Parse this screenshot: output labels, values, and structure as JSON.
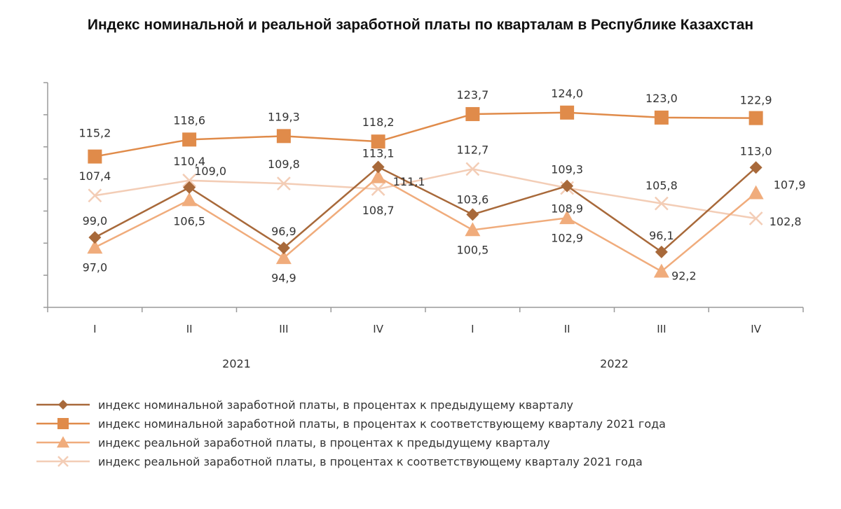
{
  "chart_data": {
    "type": "line",
    "title": "Индекс номинальной и реальной заработной платы по кварталам в Республике Казахстан",
    "categories": [
      "I",
      "II",
      "III",
      "IV",
      "I",
      "II",
      "III",
      "IV"
    ],
    "year_groups": [
      {
        "label": "2021",
        "quarters": 4
      },
      {
        "label": "2022",
        "quarters": 4
      }
    ],
    "ylim": [
      85,
      130
    ],
    "grid": false,
    "legend_position": "bottom",
    "series": [
      {
        "name": "индекс номинальной заработной платы, в процентах к предыдущему кварталу",
        "marker": "diamond",
        "color": "#a8693a",
        "values": [
          99.0,
          109.0,
          96.9,
          113.1,
          103.6,
          109.3,
          96.1,
          113.0
        ],
        "labels": [
          "99,0",
          "109,0",
          "96,9",
          "113,1",
          "103,6",
          "109,3",
          "96,1",
          "113,0"
        ]
      },
      {
        "name": "индекс номинальной заработной платы, в процентах к соответствующему кварталу 2021 года",
        "marker": "square",
        "color": "#e08b4a",
        "values": [
          115.2,
          118.6,
          119.3,
          118.2,
          123.7,
          124.0,
          123.0,
          122.9
        ],
        "labels": [
          "115,2",
          "118,6",
          "119,3",
          "118,2",
          "123,7",
          "124,0",
          "123,0",
          "122,9"
        ]
      },
      {
        "name": "индекс реальной заработной платы, в процентах к предыдущему кварталу",
        "marker": "triangle",
        "color": "#f0ac7c",
        "values": [
          97.0,
          106.5,
          94.9,
          111.1,
          100.5,
          102.9,
          92.2,
          107.9
        ],
        "labels": [
          "97,0",
          "106,5",
          "94,9",
          "111,1",
          "100,5",
          "102,9",
          "92,2",
          "107,9"
        ]
      },
      {
        "name": "индекс реальной заработной платы, в процентах к соответствующему кварталу 2021 года",
        "marker": "cross",
        "color": "#f3cdb6",
        "values": [
          107.4,
          110.4,
          109.8,
          108.7,
          112.7,
          108.9,
          105.8,
          102.8
        ],
        "labels": [
          "107,4",
          "110,4",
          "109,8",
          "108,7",
          "112,7",
          "108,9",
          "105,8",
          "102,8"
        ]
      }
    ]
  }
}
